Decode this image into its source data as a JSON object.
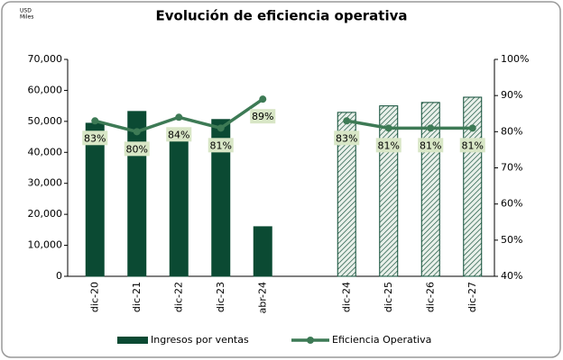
{
  "chart_data": {
    "type": "bar",
    "title": "Evolución de eficiencia operativa",
    "unit_label": [
      "USD",
      "Miles"
    ],
    "categories": [
      "dic-20",
      "dic-21",
      "dic-22",
      "dic-23",
      "abr-24",
      null,
      "dic-24",
      "dic-25",
      "dic-26",
      "dic-27"
    ],
    "series": [
      {
        "name": "Ingresos por ventas",
        "type": "bar",
        "color": "#0b4a33",
        "axis": "y",
        "values": [
          49400,
          53200,
          47000,
          50600,
          16000,
          null,
          52900,
          55000,
          56100,
          57800
        ],
        "value_styles": [
          "solid",
          "solid",
          "solid",
          "solid",
          "solid",
          null,
          "hatched",
          "hatched",
          "hatched",
          "hatched"
        ]
      },
      {
        "name": "Eficiencia Operativa",
        "type": "line",
        "color": "#3d7a55",
        "axis": "y2",
        "values": [
          83,
          80,
          84,
          81,
          89,
          null,
          83,
          81,
          81,
          81
        ],
        "value_labels": [
          "83%",
          "80%",
          "84%",
          "81%",
          "89%",
          null,
          "83%",
          "81%",
          "81%",
          "81%"
        ]
      }
    ],
    "ylim": [
      0,
      70000
    ],
    "yticks": [
      0,
      {
        "value": 10000,
        "label": "10,000"
      },
      {
        "value": 20000,
        "label": "20,000"
      },
      {
        "value": 30000,
        "label": "30,000"
      },
      {
        "value": 40000,
        "label": "40,000"
      },
      {
        "value": 50000,
        "label": "50,000"
      },
      {
        "value": 60000,
        "label": "60,000"
      },
      {
        "value": 70000,
        "label": "70,000"
      }
    ],
    "y2lim": [
      40,
      100
    ],
    "y2ticks": [
      {
        "value": 40,
        "label": "40%"
      },
      {
        "value": 50,
        "label": "50%"
      },
      {
        "value": 60,
        "label": "60%"
      },
      {
        "value": 70,
        "label": "70%"
      },
      {
        "value": 80,
        "label": "80%"
      },
      {
        "value": 90,
        "label": "90%"
      },
      {
        "value": 100,
        "label": "100%"
      }
    ],
    "grid": false,
    "legend": "bottom"
  }
}
